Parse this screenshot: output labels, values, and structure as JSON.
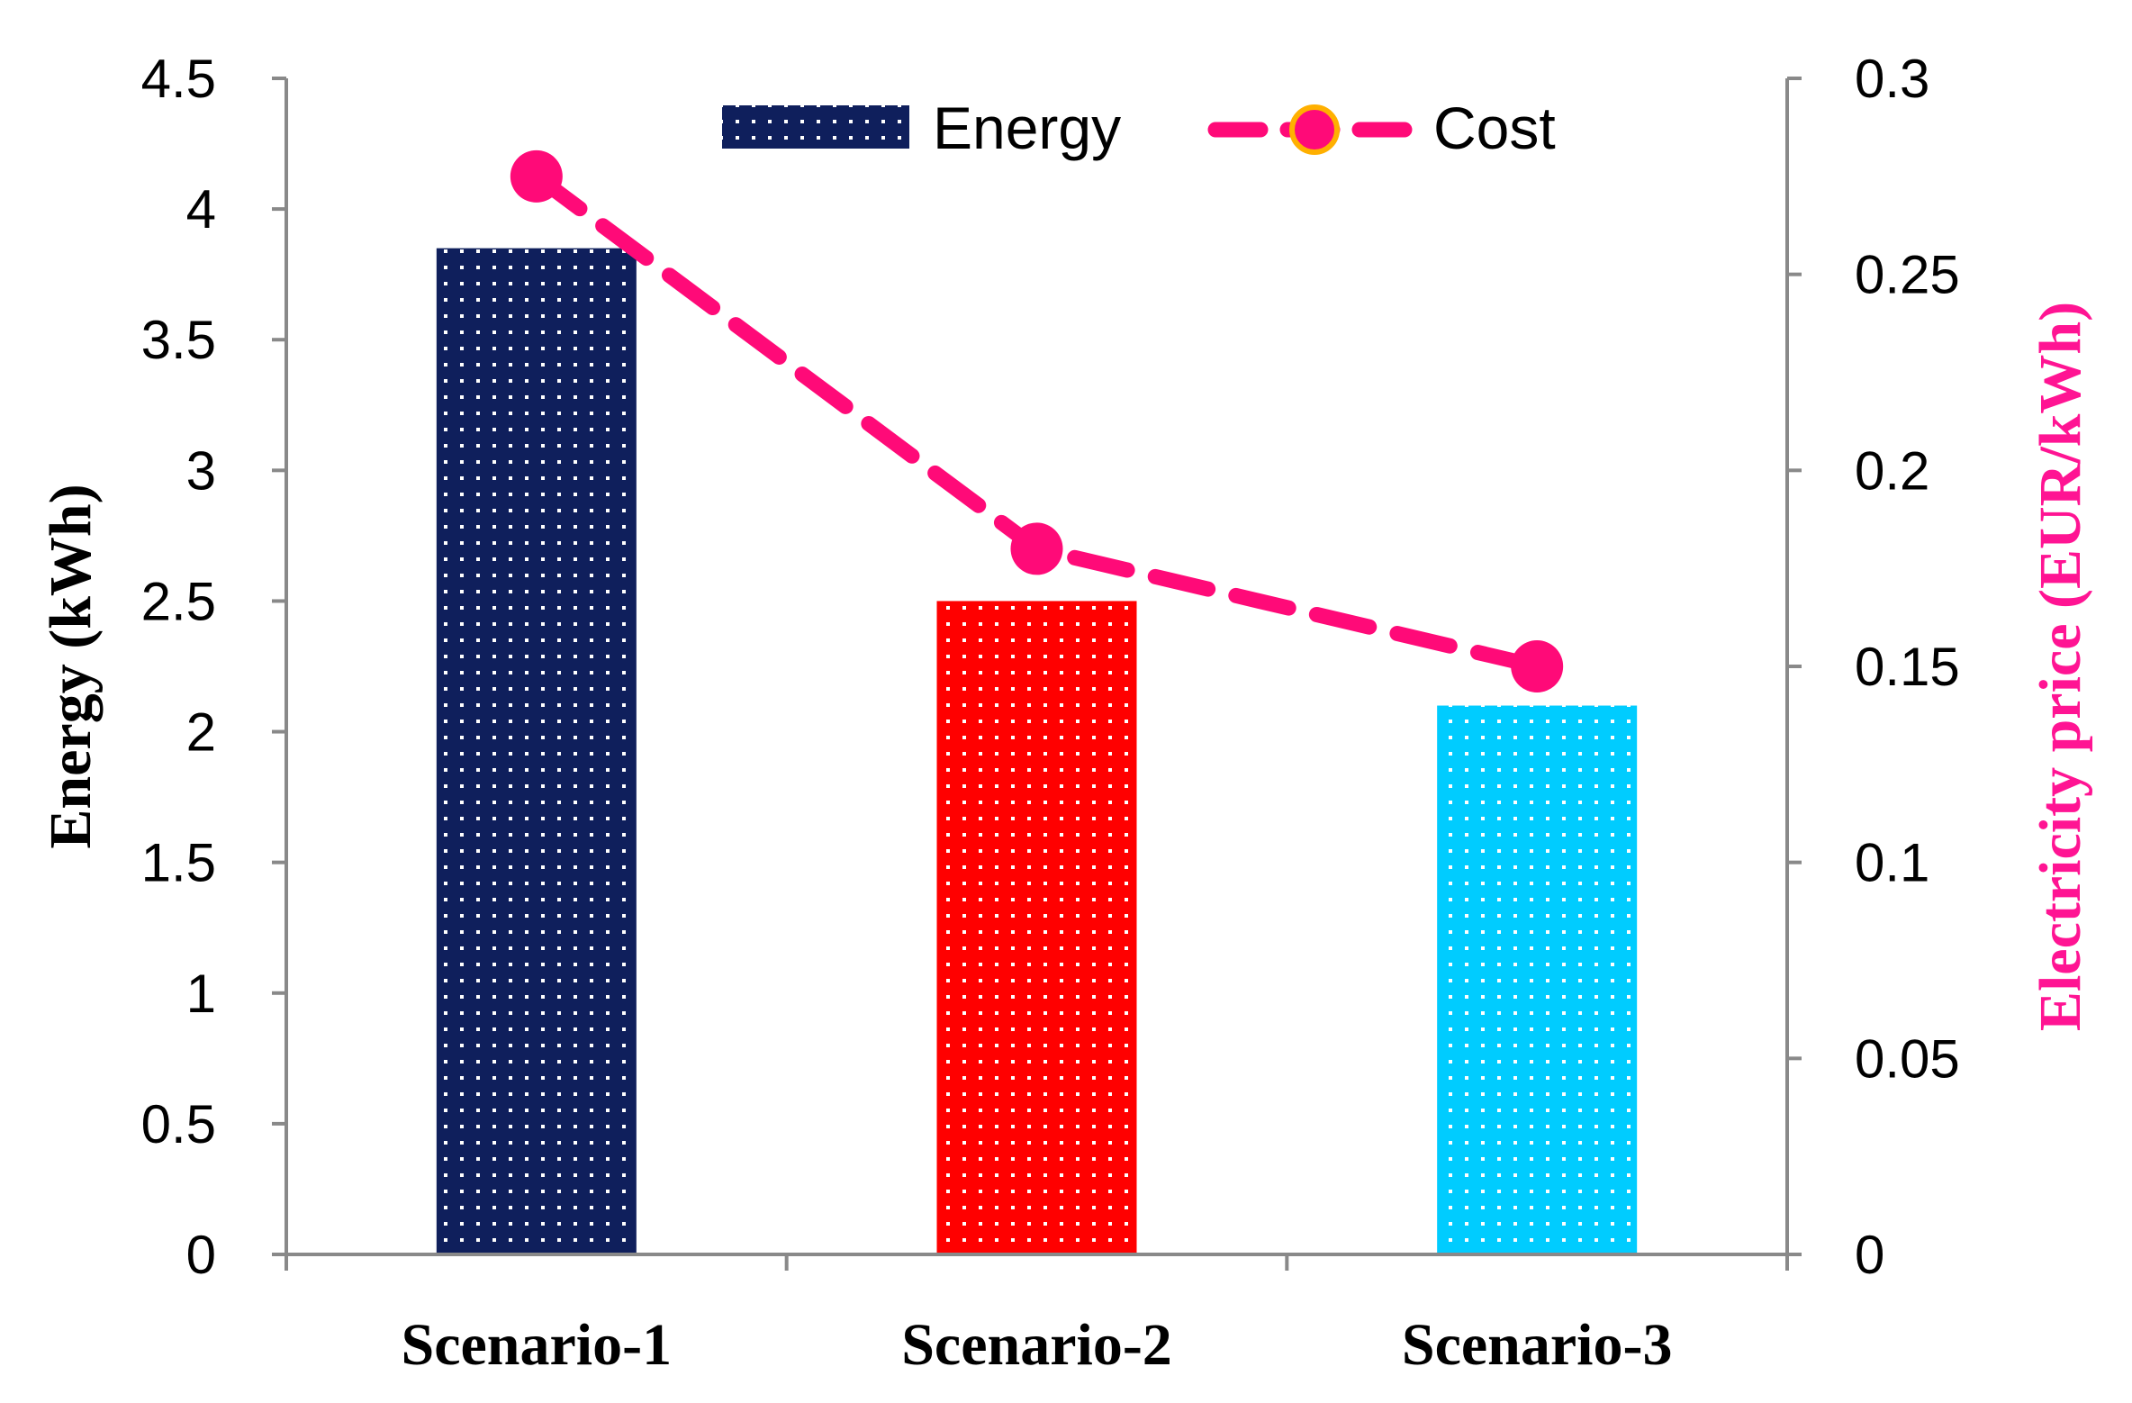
{
  "chart_data": {
    "type": "bar+line",
    "categories": [
      "Scenario-1",
      "Scenario-2",
      "Scenario-3"
    ],
    "series": [
      {
        "name": "Energy",
        "kind": "bar",
        "axis": "left",
        "values": [
          3.85,
          2.5,
          2.1
        ],
        "colors": [
          "#0f1f5c",
          "#ff0000",
          "#00ccff"
        ]
      },
      {
        "name": "Cost",
        "kind": "line",
        "axis": "right",
        "values": [
          0.275,
          0.18,
          0.15
        ],
        "color": "#ff0a78",
        "marker_edge_color": "#ffb000"
      }
    ],
    "left_axis": {
      "label": "Energy (kWh)",
      "ylim": [
        0,
        4.5
      ],
      "ticks": [
        "0",
        "0.5",
        "1",
        "1.5",
        "2",
        "2.5",
        "3",
        "3.5",
        "4",
        "4.5"
      ]
    },
    "right_axis": {
      "label": "Electricity price (EUR/kWh)",
      "label_color": "#ff1493",
      "ylim": [
        0,
        0.3
      ],
      "ticks": [
        "0",
        "0.05",
        "0.1",
        "0.15",
        "0.2",
        "0.25",
        "0.3"
      ]
    },
    "legend": {
      "position": "top-center",
      "entries": [
        "Energy",
        "Cost"
      ]
    },
    "grid": false,
    "axis_color": "#898989"
  }
}
